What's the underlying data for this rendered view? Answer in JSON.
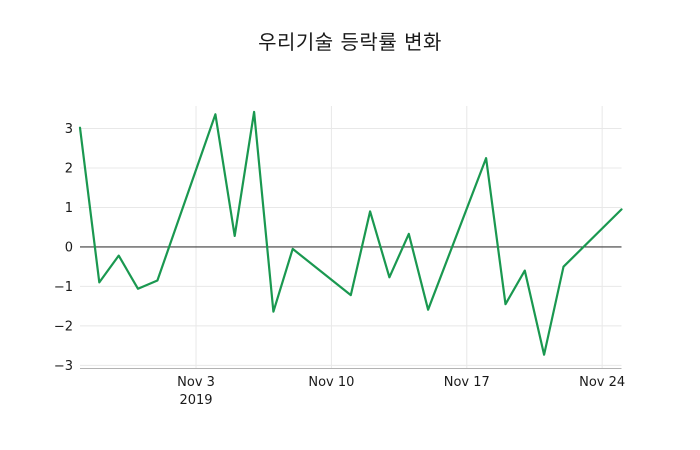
{
  "chart_data": {
    "type": "line",
    "title": "우리기술 등락률 변화",
    "xlabel": "",
    "ylabel": "",
    "grid": true,
    "legend": false,
    "xlim": [
      "2019-10-28",
      "2019-11-25"
    ],
    "ylim": [
      -3.08,
      3.57
    ],
    "y_ticks": [
      {
        "label": "3",
        "value": 3
      },
      {
        "label": "2",
        "value": 2
      },
      {
        "label": "1",
        "value": 1
      },
      {
        "label": "0",
        "value": 0
      },
      {
        "label": "−1",
        "value": -1
      },
      {
        "label": "−2",
        "value": -2
      },
      {
        "label": "−3",
        "value": -3
      }
    ],
    "x_ticks": [
      {
        "label": "Nov 3",
        "sublabel": "2019",
        "date": "2019-11-03"
      },
      {
        "label": "Nov 10",
        "sublabel": "",
        "date": "2019-11-10"
      },
      {
        "label": "Nov 17",
        "sublabel": "",
        "date": "2019-11-17"
      },
      {
        "label": "Nov 24",
        "sublabel": "",
        "date": "2019-11-24"
      }
    ],
    "zero_line": true,
    "series": [
      {
        "color": "#1a9850",
        "points": [
          {
            "date": "2019-10-28",
            "value": 3.02
          },
          {
            "date": "2019-10-29",
            "value": -0.9
          },
          {
            "date": "2019-10-30",
            "value": -0.22
          },
          {
            "date": "2019-10-31",
            "value": -1.06
          },
          {
            "date": "2019-11-01",
            "value": -0.85
          },
          {
            "date": "2019-11-04",
            "value": 3.36
          },
          {
            "date": "2019-11-05",
            "value": 0.28
          },
          {
            "date": "2019-11-06",
            "value": 3.42
          },
          {
            "date": "2019-11-07",
            "value": -1.64
          },
          {
            "date": "2019-11-08",
            "value": -0.05
          },
          {
            "date": "2019-11-11",
            "value": -1.22
          },
          {
            "date": "2019-11-12",
            "value": 0.9
          },
          {
            "date": "2019-11-13",
            "value": -0.77
          },
          {
            "date": "2019-11-14",
            "value": 0.33
          },
          {
            "date": "2019-11-15",
            "value": -1.59
          },
          {
            "date": "2019-11-18",
            "value": 2.25
          },
          {
            "date": "2019-11-19",
            "value": -1.45
          },
          {
            "date": "2019-11-20",
            "value": -0.6
          },
          {
            "date": "2019-11-21",
            "value": -2.73
          },
          {
            "date": "2019-11-22",
            "value": -0.5
          },
          {
            "date": "2019-11-25",
            "value": 0.95
          }
        ]
      }
    ],
    "colors": {
      "line": "#1a9850",
      "grid": "#e8e8e8",
      "zero_line": "#3c3c3c",
      "spine": "#b3b3b3",
      "text": "#1a1a1a",
      "background": "#ffffff"
    }
  }
}
